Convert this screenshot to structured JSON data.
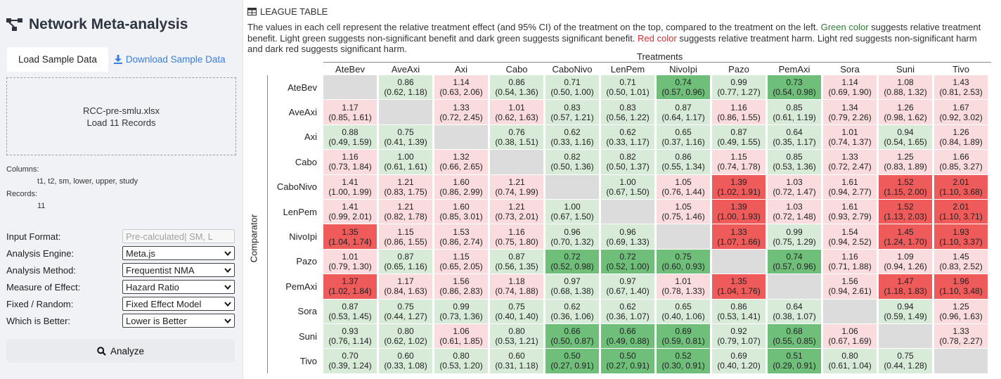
{
  "app": {
    "title": "Network Meta-analysis",
    "icon": "network-graph-icon"
  },
  "tabs": [
    {
      "label": "Load Sample Data",
      "active": true
    },
    {
      "label": "Download Sample Data",
      "icon": "download-icon",
      "link": true
    }
  ],
  "dropzone": {
    "filename": "RCC-pre-smlu.xlsx",
    "records_text": "Load 11 Records"
  },
  "dataset": {
    "columns_label": "Columns:",
    "columns_value": "t1, t2, sm, lower, upper, study",
    "records_label": "Records:",
    "records_value": "11"
  },
  "form": [
    {
      "label": "Input Format:",
      "value": "Pre-calculated| SM, L",
      "disabled": true
    },
    {
      "label": "Analysis Engine:",
      "value": "Meta.js",
      "disabled": false
    },
    {
      "label": "Analysis Method:",
      "value": "Frequentist NMA",
      "disabled": false
    },
    {
      "label": "Measure of Effect:",
      "value": "Hazard Ratio",
      "disabled": false
    },
    {
      "label": "Fixed / Random:",
      "value": "Fixed Effect Model",
      "disabled": false
    },
    {
      "label": "Which is Better:",
      "value": "Lower is Better",
      "disabled": false
    }
  ],
  "analyze_button": {
    "label": "Analyze",
    "icon": "search-icon"
  },
  "section": {
    "title": "LEAGUE TABLE",
    "icon": "table-icon"
  },
  "description": {
    "part1": "The values in each cell represent the relative treatment effect (and 95% CI) of the treatment on the top, compared to the treatment on the left. ",
    "green_word": "Green color",
    "part2": " suggests relative treatment benefit. Light green suggests non-significant benefit and dark green suggests significant benefit. ",
    "red_word": "Red color",
    "part3": " suggests relative treatment harm. Light red suggests non-significant harm and dark red suggests significant harm."
  },
  "table": {
    "col_axis_label": "Treatments",
    "row_axis_label": "Comparator",
    "colors": {
      "light_green": "#d8ebd9",
      "dark_green": "#6fbf7b",
      "light_red": "#fadcde",
      "dark_red": "#ef5a5a",
      "blank": "#dcdcdc"
    },
    "treatments": [
      "AteBev",
      "AveAxi",
      "Axi",
      "Cabo",
      "CaboNivo",
      "LenPem",
      "NivoIpi",
      "Pazo",
      "PemAxi",
      "Sora",
      "Suni",
      "Tivo"
    ],
    "rows": [
      {
        "name": "AteBev",
        "cells": [
          {
            "c": "na"
          },
          {
            "e": "0.86",
            "ci": "(0.62, 1.18)",
            "c": "lg"
          },
          {
            "e": "1.14",
            "ci": "(0.63, 2.06)",
            "c": "lr"
          },
          {
            "e": "0.86",
            "ci": "(0.54, 1.36)",
            "c": "lg"
          },
          {
            "e": "0.71",
            "ci": "(0.50, 1.00)",
            "c": "lg"
          },
          {
            "e": "0.71",
            "ci": "(0.50, 1.01)",
            "c": "lg"
          },
          {
            "e": "0.74",
            "ci": "(0.57, 0.96)",
            "c": "dg"
          },
          {
            "e": "0.99",
            "ci": "(0.77, 1.27)",
            "c": "lg"
          },
          {
            "e": "0.73",
            "ci": "(0.54, 0.98)",
            "c": "dg"
          },
          {
            "e": "1.14",
            "ci": "(0.69, 1.90)",
            "c": "lr"
          },
          {
            "e": "1.08",
            "ci": "(0.88, 1.32)",
            "c": "lr"
          },
          {
            "e": "1.43",
            "ci": "(0.81, 2.53)",
            "c": "lr"
          }
        ]
      },
      {
        "name": "AveAxi",
        "cells": [
          {
            "e": "1.17",
            "ci": "(0.85, 1.61)",
            "c": "lr"
          },
          {
            "c": "na"
          },
          {
            "e": "1.33",
            "ci": "(0.72, 2.45)",
            "c": "lr"
          },
          {
            "e": "1.01",
            "ci": "(0.62, 1.63)",
            "c": "lr"
          },
          {
            "e": "0.83",
            "ci": "(0.57, 1.21)",
            "c": "lg"
          },
          {
            "e": "0.83",
            "ci": "(0.56, 1.22)",
            "c": "lg"
          },
          {
            "e": "0.87",
            "ci": "(0.64, 1.17)",
            "c": "lg"
          },
          {
            "e": "1.16",
            "ci": "(0.86, 1.55)",
            "c": "lr"
          },
          {
            "e": "0.85",
            "ci": "(0.61, 1.19)",
            "c": "lg"
          },
          {
            "e": "1.34",
            "ci": "(0.79, 2.26)",
            "c": "lr"
          },
          {
            "e": "1.26",
            "ci": "(0.98, 1.62)",
            "c": "lr"
          },
          {
            "e": "1.67",
            "ci": "(0.92, 3.02)",
            "c": "lr"
          }
        ]
      },
      {
        "name": "Axi",
        "cells": [
          {
            "e": "0.88",
            "ci": "(0.49, 1.59)",
            "c": "lg"
          },
          {
            "e": "0.75",
            "ci": "(0.41, 1.39)",
            "c": "lg"
          },
          {
            "c": "na"
          },
          {
            "e": "0.76",
            "ci": "(0.38, 1.51)",
            "c": "lg"
          },
          {
            "e": "0.62",
            "ci": "(0.33, 1.16)",
            "c": "lg"
          },
          {
            "e": "0.62",
            "ci": "(0.33, 1.17)",
            "c": "lg"
          },
          {
            "e": "0.65",
            "ci": "(0.37, 1.16)",
            "c": "lg"
          },
          {
            "e": "0.87",
            "ci": "(0.49, 1.55)",
            "c": "lg"
          },
          {
            "e": "0.64",
            "ci": "(0.35, 1.17)",
            "c": "lg"
          },
          {
            "e": "1.01",
            "ci": "(0.74, 1.37)",
            "c": "lr"
          },
          {
            "e": "0.94",
            "ci": "(0.54, 1.65)",
            "c": "lg"
          },
          {
            "e": "1.26",
            "ci": "(0.84, 1.89)",
            "c": "lr"
          }
        ]
      },
      {
        "name": "Cabo",
        "cells": [
          {
            "e": "1.16",
            "ci": "(0.73, 1.84)",
            "c": "lr"
          },
          {
            "e": "1.00",
            "ci": "(0.61, 1.61)",
            "c": "lg"
          },
          {
            "e": "1.32",
            "ci": "(0.66, 2.65)",
            "c": "lr"
          },
          {
            "c": "na"
          },
          {
            "e": "0.82",
            "ci": "(0.50, 1.36)",
            "c": "lg"
          },
          {
            "e": "0.82",
            "ci": "(0.50, 1.37)",
            "c": "lg"
          },
          {
            "e": "0.86",
            "ci": "(0.55, 1.34)",
            "c": "lg"
          },
          {
            "e": "1.15",
            "ci": "(0.74, 1.78)",
            "c": "lr"
          },
          {
            "e": "0.85",
            "ci": "(0.53, 1.36)",
            "c": "lg"
          },
          {
            "e": "1.33",
            "ci": "(0.72, 2.47)",
            "c": "lr"
          },
          {
            "e": "1.25",
            "ci": "(0.83, 1.89)",
            "c": "lr"
          },
          {
            "e": "1.66",
            "ci": "(0.85, 3.27)",
            "c": "lr"
          }
        ]
      },
      {
        "name": "CaboNivo",
        "cells": [
          {
            "e": "1.41",
            "ci": "(1.00, 1.99)",
            "c": "lr"
          },
          {
            "e": "1.21",
            "ci": "(0.83, 1.75)",
            "c": "lr"
          },
          {
            "e": "1.60",
            "ci": "(0.86, 2.99)",
            "c": "lr"
          },
          {
            "e": "1.21",
            "ci": "(0.74, 1.99)",
            "c": "lr"
          },
          {
            "c": "na"
          },
          {
            "e": "1.00",
            "ci": "(0.67, 1.50)",
            "c": "lg"
          },
          {
            "e": "1.05",
            "ci": "(0.76, 1.44)",
            "c": "lr"
          },
          {
            "e": "1.39",
            "ci": "(1.02, 1.91)",
            "c": "dr"
          },
          {
            "e": "1.03",
            "ci": "(0.72, 1.47)",
            "c": "lr"
          },
          {
            "e": "1.61",
            "ci": "(0.94, 2.77)",
            "c": "lr"
          },
          {
            "e": "1.52",
            "ci": "(1.15, 2.00)",
            "c": "dr"
          },
          {
            "e": "2.01",
            "ci": "(1.10, 3.68)",
            "c": "dr"
          }
        ]
      },
      {
        "name": "LenPem",
        "cells": [
          {
            "e": "1.41",
            "ci": "(0.99, 2.01)",
            "c": "lr"
          },
          {
            "e": "1.21",
            "ci": "(0.82, 1.78)",
            "c": "lr"
          },
          {
            "e": "1.60",
            "ci": "(0.85, 3.01)",
            "c": "lr"
          },
          {
            "e": "1.21",
            "ci": "(0.73, 2.01)",
            "c": "lr"
          },
          {
            "e": "1.00",
            "ci": "(0.67, 1.50)",
            "c": "lg"
          },
          {
            "c": "na"
          },
          {
            "e": "1.05",
            "ci": "(0.75, 1.46)",
            "c": "lr"
          },
          {
            "e": "1.39",
            "ci": "(1.00, 1.93)",
            "c": "dr"
          },
          {
            "e": "1.03",
            "ci": "(0.72, 1.48)",
            "c": "lr"
          },
          {
            "e": "1.61",
            "ci": "(0.93, 2.79)",
            "c": "lr"
          },
          {
            "e": "1.52",
            "ci": "(1.13, 2.03)",
            "c": "dr"
          },
          {
            "e": "2.01",
            "ci": "(1.10, 3.71)",
            "c": "dr"
          }
        ]
      },
      {
        "name": "NivoIpi",
        "cells": [
          {
            "e": "1.35",
            "ci": "(1.04, 1.74)",
            "c": "dr"
          },
          {
            "e": "1.15",
            "ci": "(0.86, 1.55)",
            "c": "lr"
          },
          {
            "e": "1.53",
            "ci": "(0.86, 2.74)",
            "c": "lr"
          },
          {
            "e": "1.16",
            "ci": "(0.75, 1.80)",
            "c": "lr"
          },
          {
            "e": "0.96",
            "ci": "(0.70, 1.32)",
            "c": "lg"
          },
          {
            "e": "0.96",
            "ci": "(0.69, 1.33)",
            "c": "lg"
          },
          {
            "c": "na"
          },
          {
            "e": "1.33",
            "ci": "(1.07, 1.66)",
            "c": "dr"
          },
          {
            "e": "0.99",
            "ci": "(0.75, 1.29)",
            "c": "lg"
          },
          {
            "e": "1.54",
            "ci": "(0.94, 2.52)",
            "c": "lr"
          },
          {
            "e": "1.45",
            "ci": "(1.24, 1.70)",
            "c": "dr"
          },
          {
            "e": "1.93",
            "ci": "(1.10, 3.37)",
            "c": "dr"
          }
        ]
      },
      {
        "name": "Pazo",
        "cells": [
          {
            "e": "1.01",
            "ci": "(0.79, 1.30)",
            "c": "lr"
          },
          {
            "e": "0.87",
            "ci": "(0.65, 1.16)",
            "c": "lg"
          },
          {
            "e": "1.15",
            "ci": "(0.65, 2.05)",
            "c": "lr"
          },
          {
            "e": "0.87",
            "ci": "(0.56, 1.35)",
            "c": "lg"
          },
          {
            "e": "0.72",
            "ci": "(0.52, 0.98)",
            "c": "dg"
          },
          {
            "e": "0.72",
            "ci": "(0.52, 1.00)",
            "c": "dg"
          },
          {
            "e": "0.75",
            "ci": "(0.60, 0.93)",
            "c": "dg"
          },
          {
            "c": "na"
          },
          {
            "e": "0.74",
            "ci": "(0.57, 0.96)",
            "c": "dg"
          },
          {
            "e": "1.16",
            "ci": "(0.71, 1.88)",
            "c": "lr"
          },
          {
            "e": "1.09",
            "ci": "(0.94, 1.26)",
            "c": "lr"
          },
          {
            "e": "1.45",
            "ci": "(0.83, 2.52)",
            "c": "lr"
          }
        ]
      },
      {
        "name": "PemAxi",
        "cells": [
          {
            "e": "1.37",
            "ci": "(1.02, 1.84)",
            "c": "dr"
          },
          {
            "e": "1.17",
            "ci": "(0.84, 1.63)",
            "c": "lr"
          },
          {
            "e": "1.56",
            "ci": "(0.86, 2.83)",
            "c": "lr"
          },
          {
            "e": "1.18",
            "ci": "(0.74, 1.88)",
            "c": "lr"
          },
          {
            "e": "0.97",
            "ci": "(0.68, 1.38)",
            "c": "lg"
          },
          {
            "e": "0.97",
            "ci": "(0.67, 1.40)",
            "c": "lg"
          },
          {
            "e": "1.01",
            "ci": "(0.78, 1.33)",
            "c": "lr"
          },
          {
            "e": "1.35",
            "ci": "(1.04, 1.76)",
            "c": "dr"
          },
          {
            "c": "na"
          },
          {
            "e": "1.56",
            "ci": "(0.94, 2.61)",
            "c": "lr"
          },
          {
            "e": "1.47",
            "ci": "(1.18, 1.83)",
            "c": "dr"
          },
          {
            "e": "1.96",
            "ci": "(1.10, 3.48)",
            "c": "dr"
          }
        ]
      },
      {
        "name": "Sora",
        "cells": [
          {
            "e": "0.87",
            "ci": "(0.53, 1.45)",
            "c": "lg"
          },
          {
            "e": "0.75",
            "ci": "(0.44, 1.27)",
            "c": "lg"
          },
          {
            "e": "0.99",
            "ci": "(0.73, 1.36)",
            "c": "lg"
          },
          {
            "e": "0.75",
            "ci": "(0.40, 1.40)",
            "c": "lg"
          },
          {
            "e": "0.62",
            "ci": "(0.36, 1.06)",
            "c": "lg"
          },
          {
            "e": "0.62",
            "ci": "(0.36, 1.07)",
            "c": "lg"
          },
          {
            "e": "0.65",
            "ci": "(0.40, 1.06)",
            "c": "lg"
          },
          {
            "e": "0.86",
            "ci": "(0.53, 1.41)",
            "c": "lg"
          },
          {
            "e": "0.64",
            "ci": "(0.38, 1.07)",
            "c": "lg"
          },
          {
            "c": "na"
          },
          {
            "e": "0.94",
            "ci": "(0.59, 1.49)",
            "c": "lg"
          },
          {
            "e": "1.25",
            "ci": "(0.96, 1.63)",
            "c": "lr"
          }
        ]
      },
      {
        "name": "Suni",
        "cells": [
          {
            "e": "0.93",
            "ci": "(0.76, 1.14)",
            "c": "lg"
          },
          {
            "e": "0.80",
            "ci": "(0.62, 1.02)",
            "c": "lg"
          },
          {
            "e": "1.06",
            "ci": "(0.61, 1.85)",
            "c": "lr"
          },
          {
            "e": "0.80",
            "ci": "(0.53, 1.21)",
            "c": "lg"
          },
          {
            "e": "0.66",
            "ci": "(0.50, 0.87)",
            "c": "dg"
          },
          {
            "e": "0.66",
            "ci": "(0.49, 0.88)",
            "c": "dg"
          },
          {
            "e": "0.69",
            "ci": "(0.59, 0.81)",
            "c": "dg"
          },
          {
            "e": "0.92",
            "ci": "(0.79, 1.07)",
            "c": "lg"
          },
          {
            "e": "0.68",
            "ci": "(0.55, 0.85)",
            "c": "dg"
          },
          {
            "e": "1.06",
            "ci": "(0.67, 1.69)",
            "c": "lr"
          },
          {
            "c": "na"
          },
          {
            "e": "1.33",
            "ci": "(0.78, 2.27)",
            "c": "lr"
          }
        ]
      },
      {
        "name": "Tivo",
        "cells": [
          {
            "e": "0.70",
            "ci": "(0.39, 1.24)",
            "c": "lg"
          },
          {
            "e": "0.60",
            "ci": "(0.33, 1.08)",
            "c": "lg"
          },
          {
            "e": "0.80",
            "ci": "(0.53, 1.20)",
            "c": "lg"
          },
          {
            "e": "0.60",
            "ci": "(0.31, 1.18)",
            "c": "lg"
          },
          {
            "e": "0.50",
            "ci": "(0.27, 0.91)",
            "c": "dg"
          },
          {
            "e": "0.50",
            "ci": "(0.27, 0.91)",
            "c": "dg"
          },
          {
            "e": "0.52",
            "ci": "(0.30, 0.91)",
            "c": "dg"
          },
          {
            "e": "0.69",
            "ci": "(0.40, 1.20)",
            "c": "lg"
          },
          {
            "e": "0.51",
            "ci": "(0.29, 0.91)",
            "c": "dg"
          },
          {
            "e": "0.80",
            "ci": "(0.61, 1.04)",
            "c": "lg"
          },
          {
            "e": "0.75",
            "ci": "(0.44, 1.28)",
            "c": "lg"
          },
          {
            "c": "na"
          }
        ]
      }
    ]
  }
}
